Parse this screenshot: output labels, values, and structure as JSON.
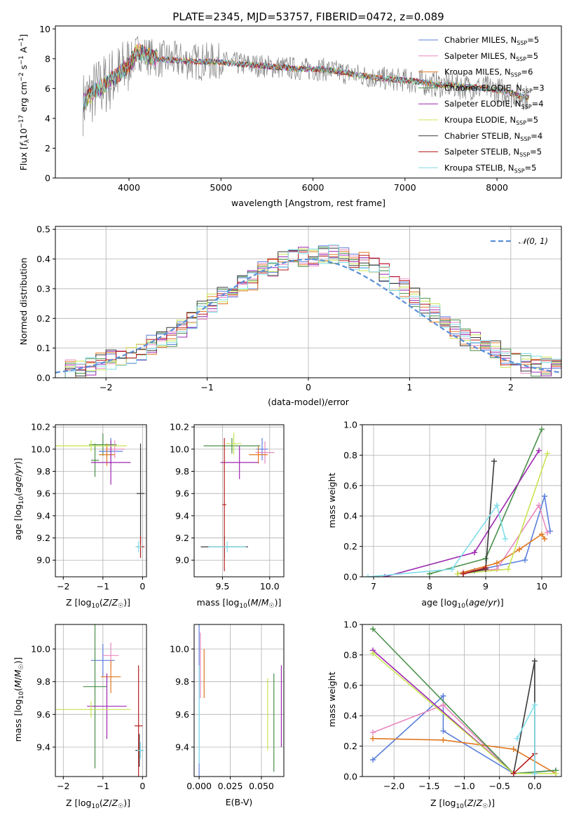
{
  "chart_data": [
    {
      "id": "spectrum",
      "type": "line",
      "title": "PLATE=2345, MJD=53757, FIBERID=0472, z=0.089",
      "xlabel": "wavelength [Angstrom, rest frame]",
      "ylabel": "Flux [f_λ 10^-17 erg cm^-2 s^-1 A^-1]",
      "xlim": [
        3200,
        8700
      ],
      "ylim": [
        0,
        10.2
      ],
      "xticks": [
        4000,
        5000,
        6000,
        7000,
        8000
      ],
      "yticks": [
        0,
        2,
        4,
        6,
        8,
        10
      ],
      "grid": false,
      "legend_position": "top-right",
      "continuum": {
        "x": [
          3500,
          3600,
          3700,
          3800,
          3900,
          4000,
          4100,
          4200,
          4300,
          4500,
          4700,
          4900,
          5100,
          5300,
          5500,
          5700,
          5900,
          6100,
          6300,
          6500,
          6700,
          6900,
          7100,
          7300,
          7500,
          7700,
          7900,
          8100,
          8300
        ],
        "y": [
          5.0,
          5.7,
          6.1,
          6.6,
          7.0,
          7.6,
          8.5,
          8.2,
          8.0,
          7.9,
          7.8,
          7.8,
          7.7,
          7.6,
          7.5,
          7.4,
          7.3,
          7.3,
          7.1,
          6.9,
          6.7,
          6.6,
          6.5,
          6.3,
          6.2,
          6.1,
          6.0,
          5.8,
          5.4
        ]
      },
      "series": [
        {
          "name": "Chabrier MILES, N",
          "sub": "SSP",
          "suffix": "=5",
          "color": "#5b7fdc"
        },
        {
          "name": "Salpeter MILES, N",
          "sub": "SSP",
          "suffix": "=5",
          "color": "#e889c0"
        },
        {
          "name": "Kroupa MILES, N",
          "sub": "SSP",
          "suffix": "=6",
          "color": "#e07820"
        },
        {
          "name": "Chabrier ELODIE, N",
          "sub": "SSP",
          "suffix": "=3",
          "color": "#4a8f4a"
        },
        {
          "name": "Salpeter ELODIE, N",
          "sub": "SSP",
          "suffix": "=4",
          "color": "#9d27b0"
        },
        {
          "name": "Kroupa ELODIE, N",
          "sub": "SSP",
          "suffix": "=5",
          "color": "#c8e450"
        },
        {
          "name": "Chabrier STELIB, N",
          "sub": "SSP",
          "suffix": "=4",
          "color": "#3a3a3a"
        },
        {
          "name": "Salpeter STELIB, N",
          "sub": "SSP",
          "suffix": "=5",
          "color": "#b71c1c"
        },
        {
          "name": "Kroupa STELIB, N",
          "sub": "SSP",
          "suffix": "=5",
          "color": "#80deea"
        }
      ]
    },
    {
      "id": "residuals",
      "type": "bar",
      "xlabel": "(data-model)/error",
      "ylabel": "Normed distribution",
      "xlim": [
        -2.5,
        2.5
      ],
      "ylim": [
        0,
        0.51
      ],
      "xticks": [
        -2,
        -1,
        0,
        1,
        2
      ],
      "yticks": [
        0.0,
        0.1,
        0.2,
        0.3,
        0.4,
        0.5
      ],
      "grid": true,
      "legend_position": "top-right",
      "reference": {
        "name": "N(0,1)",
        "color": "#5b8fd9"
      },
      "bin_width": 0.1,
      "bins_start": -2.5,
      "histogram": [
        0.02,
        0.025,
        0.03,
        0.04,
        0.05,
        0.06,
        0.07,
        0.08,
        0.09,
        0.11,
        0.12,
        0.14,
        0.17,
        0.2,
        0.23,
        0.25,
        0.27,
        0.29,
        0.31,
        0.33,
        0.36,
        0.37,
        0.39,
        0.4,
        0.41,
        0.41,
        0.42,
        0.42,
        0.41,
        0.4,
        0.39,
        0.37,
        0.35,
        0.32,
        0.3,
        0.27,
        0.24,
        0.22,
        0.19,
        0.16,
        0.14,
        0.12,
        0.1,
        0.09,
        0.07,
        0.06,
        0.05,
        0.04,
        0.035,
        0.03
      ]
    },
    {
      "id": "age-vs-z",
      "type": "scatter",
      "xlabel": "Z [log10(Z/Z☉)]",
      "ylabel": "age [log10(age/yr)]",
      "xlim": [
        -2.2,
        0.1
      ],
      "ylim": [
        8.85,
        10.22
      ],
      "xticks": [
        -2,
        -1,
        0
      ],
      "yticks": [
        9.0,
        9.2,
        9.4,
        9.6,
        9.8,
        10.0,
        10.2
      ],
      "grid": true,
      "points": [
        {
          "x": -1.0,
          "y": 10.04,
          "xerr": 0.35,
          "yerr": 0.1,
          "series": 3
        },
        {
          "x": -0.8,
          "y": 9.98,
          "xerr": 0.3,
          "yerr": 0.12,
          "series": 0
        },
        {
          "x": -0.7,
          "y": 10.0,
          "xerr": 0.25,
          "yerr": 0.08,
          "series": 1
        },
        {
          "x": -0.9,
          "y": 9.95,
          "xerr": 0.2,
          "yerr": 0.1,
          "series": 2
        },
        {
          "x": -1.2,
          "y": 9.9,
          "xerr": 0.1,
          "yerr": 0.15,
          "series": 3
        },
        {
          "x": -0.8,
          "y": 9.88,
          "xerr": 0.5,
          "yerr": 0.2,
          "series": 4
        },
        {
          "x": -1.3,
          "y": 10.03,
          "xerr": 0.9,
          "yerr": 0.05,
          "series": 5
        },
        {
          "x": -0.05,
          "y": 9.6,
          "xerr": 0.1,
          "yerr": 0.45,
          "series": 6
        },
        {
          "x": -0.05,
          "y": 9.12,
          "xerr": 0.1,
          "yerr": 0.1,
          "series": 7
        },
        {
          "x": -0.1,
          "y": 9.12,
          "xerr": 0.08,
          "yerr": 0.05,
          "series": 8
        }
      ]
    },
    {
      "id": "age-vs-mass",
      "type": "scatter",
      "xlabel": "mass [log10(M/M☉)]",
      "ylabel": "",
      "xlim": [
        9.2,
        10.15
      ],
      "ylim": [
        8.85,
        10.22
      ],
      "xticks": [
        9.5,
        10.0
      ],
      "yticks": [
        9.0,
        9.2,
        9.4,
        9.6,
        9.8,
        10.0,
        10.2
      ],
      "grid": true,
      "points": [
        {
          "x": 9.92,
          "y": 10.0,
          "xerr": 0.06,
          "yerr": 0.1,
          "series": 0
        },
        {
          "x": 9.95,
          "y": 9.97,
          "xerr": 0.1,
          "yerr": 0.1,
          "series": 1
        },
        {
          "x": 9.88,
          "y": 9.95,
          "xerr": 0.1,
          "yerr": 0.08,
          "series": 2
        },
        {
          "x": 9.6,
          "y": 10.03,
          "xerr": 0.3,
          "yerr": 0.07,
          "series": 3
        },
        {
          "x": 9.68,
          "y": 9.88,
          "xerr": 0.2,
          "yerr": 0.15,
          "series": 4
        },
        {
          "x": 9.62,
          "y": 10.05,
          "xerr": 0.08,
          "yerr": 0.1,
          "series": 5
        },
        {
          "x": 9.52,
          "y": 9.12,
          "xerr": 0.25,
          "yerr": 0.1,
          "series": 6
        },
        {
          "x": 9.52,
          "y": 9.5,
          "xerr": 0.02,
          "yerr": 0.6,
          "series": 7
        },
        {
          "x": 9.55,
          "y": 9.12,
          "xerr": 0.2,
          "yerr": 0.05,
          "series": 8
        }
      ]
    },
    {
      "id": "weight-vs-age",
      "type": "line",
      "xlabel": "age [log10(age/yr)]",
      "ylabel": "mass weight",
      "xlim": [
        6.8,
        10.35
      ],
      "ylim": [
        0.0,
        1.0
      ],
      "xticks": [
        7,
        8,
        9,
        10
      ],
      "yticks": [
        0.0,
        0.2,
        0.4,
        0.6,
        0.8,
        1.0
      ],
      "grid": true,
      "series_points": [
        {
          "series": 0,
          "x": [
            8.5,
            8.8,
            9.7,
            10.05,
            10.15
          ],
          "y": [
            0.02,
            0.04,
            0.11,
            0.53,
            0.3
          ]
        },
        {
          "series": 1,
          "x": [
            8.6,
            9.2,
            9.95,
            10.1
          ],
          "y": [
            0.03,
            0.05,
            0.47,
            0.29
          ]
        },
        {
          "series": 2,
          "x": [
            8.5,
            9.2,
            9.6,
            10.0,
            10.05
          ],
          "y": [
            0.02,
            0.09,
            0.18,
            0.28,
            0.25
          ]
        },
        {
          "series": 3,
          "x": [
            8.0,
            9.0,
            10.0
          ],
          "y": [
            0.02,
            0.12,
            0.97
          ]
        },
        {
          "series": 4,
          "x": [
            7.2,
            8.8,
            9.95
          ],
          "y": [
            0.0,
            0.16,
            0.83
          ]
        },
        {
          "series": 5,
          "x": [
            8.5,
            9.4,
            10.1
          ],
          "y": [
            0.02,
            0.05,
            0.81
          ]
        },
        {
          "series": 6,
          "x": [
            8.6,
            9.0,
            9.15
          ],
          "y": [
            0.02,
            0.05,
            0.76
          ]
        },
        {
          "series": 7,
          "x": [
            8.6,
            9.0
          ],
          "y": [
            0.02,
            0.06
          ]
        },
        {
          "series": 8,
          "x": [
            6.9,
            8.4,
            9.2,
            9.35
          ],
          "y": [
            0.0,
            0.05,
            0.47,
            0.25
          ]
        }
      ]
    },
    {
      "id": "mass-vs-z",
      "type": "scatter",
      "xlabel": "Z [log10(Z/Z☉)]",
      "ylabel": "mass [log10(M/M☉)]",
      "xlim": [
        -2.2,
        0.1
      ],
      "ylim": [
        9.22,
        10.15
      ],
      "xticks": [
        -2,
        -1,
        0
      ],
      "yticks": [
        9.4,
        9.6,
        9.8,
        10.0
      ],
      "grid": true,
      "points": [
        {
          "x": -1.0,
          "y": 9.93,
          "xerr": 0.3,
          "yerr": 0.1,
          "series": 0
        },
        {
          "x": -0.8,
          "y": 9.96,
          "xerr": 0.2,
          "yerr": 0.08,
          "series": 1
        },
        {
          "x": -0.8,
          "y": 9.83,
          "xerr": 0.25,
          "yerr": 0.1,
          "series": 2
        },
        {
          "x": -1.2,
          "y": 9.77,
          "xerr": 0.3,
          "yerr": 0.5,
          "series": 3
        },
        {
          "x": -0.9,
          "y": 9.65,
          "xerr": 0.5,
          "yerr": 0.2,
          "series": 4
        },
        {
          "x": -1.3,
          "y": 9.63,
          "xerr": 1.0,
          "yerr": 0.05,
          "series": 5
        },
        {
          "x": -0.08,
          "y": 9.38,
          "xerr": 0.1,
          "yerr": 0.1,
          "series": 6
        },
        {
          "x": -0.1,
          "y": 9.53,
          "xerr": 0.1,
          "yerr": 0.37,
          "series": 7
        },
        {
          "x": -0.05,
          "y": 9.38,
          "xerr": 0.08,
          "yerr": 0.05,
          "series": 8
        }
      ]
    },
    {
      "id": "mass-vs-ebv",
      "type": "scatter",
      "xlabel": "E(B-V)",
      "ylabel": "",
      "xlim": [
        -0.004,
        0.068
      ],
      "ylim": [
        9.22,
        10.15
      ],
      "xticks": [
        0.0,
        0.025,
        0.05
      ],
      "xtick_labels": [
        "0.000",
        "0.025",
        "0.050"
      ],
      "yticks": [
        9.4,
        9.6,
        9.8,
        10.0
      ],
      "grid": true,
      "points": [
        {
          "x": 0.001,
          "y": 9.9,
          "yerr": 0.2,
          "series": 1
        },
        {
          "x": 0.004,
          "y": 9.85,
          "yerr": 0.15,
          "series": 2
        },
        {
          "x": 0.0,
          "y": 9.7,
          "yerr": 0.5,
          "series": 0
        },
        {
          "x": 0.06,
          "y": 9.55,
          "yerr": 0.3,
          "series": 3
        },
        {
          "x": 0.066,
          "y": 9.65,
          "yerr": 0.25,
          "series": 4
        },
        {
          "x": 0.055,
          "y": 9.6,
          "yerr": 0.22,
          "series": 5
        },
        {
          "x": 0.0,
          "y": 9.6,
          "yerr": 0.3,
          "series": 8
        }
      ]
    },
    {
      "id": "weight-vs-z",
      "type": "line",
      "xlabel": "Z [log10(Z/Z☉)]",
      "ylabel": "mass weight",
      "xlim": [
        -2.45,
        0.38
      ],
      "ylim": [
        0.0,
        1.0
      ],
      "xticks": [
        -2.0,
        -1.5,
        -1.0,
        -0.5,
        0.0
      ],
      "xtick_labels": [
        "−2.0",
        "−1.5",
        "−1.0",
        "−0.5",
        "0.0"
      ],
      "yticks": [
        0.0,
        0.2,
        0.4,
        0.6,
        0.8,
        1.0
      ],
      "grid": true,
      "series_points": [
        {
          "series": 0,
          "x": [
            -2.3,
            -1.3,
            -1.3,
            -0.3,
            0.3
          ],
          "y": [
            0.11,
            0.53,
            0.3,
            0.02,
            0.04
          ]
        },
        {
          "series": 1,
          "x": [
            -2.3,
            -1.3,
            -0.3
          ],
          "y": [
            0.29,
            0.47,
            0.02
          ]
        },
        {
          "series": 2,
          "x": [
            -2.3,
            -1.3,
            -0.3,
            0.3
          ],
          "y": [
            0.25,
            0.24,
            0.18,
            0.02
          ]
        },
        {
          "series": 3,
          "x": [
            -2.3,
            -0.3,
            0.3
          ],
          "y": [
            0.97,
            0.02,
            0.04
          ]
        },
        {
          "series": 4,
          "x": [
            -2.3,
            -0.3
          ],
          "y": [
            0.83,
            0.02
          ]
        },
        {
          "series": 5,
          "x": [
            -2.3,
            -0.3,
            0.3
          ],
          "y": [
            0.81,
            0.02,
            0.02
          ]
        },
        {
          "series": 6,
          "x": [
            -0.3,
            0.0,
            0.0
          ],
          "y": [
            0.02,
            0.76,
            0.02
          ]
        },
        {
          "series": 7,
          "x": [
            -0.3,
            0.0
          ],
          "y": [
            0.02,
            0.15
          ]
        },
        {
          "series": 8,
          "x": [
            -0.25,
            0.0,
            0.0
          ],
          "y": [
            0.25,
            0.47,
            0.02
          ]
        }
      ]
    }
  ]
}
